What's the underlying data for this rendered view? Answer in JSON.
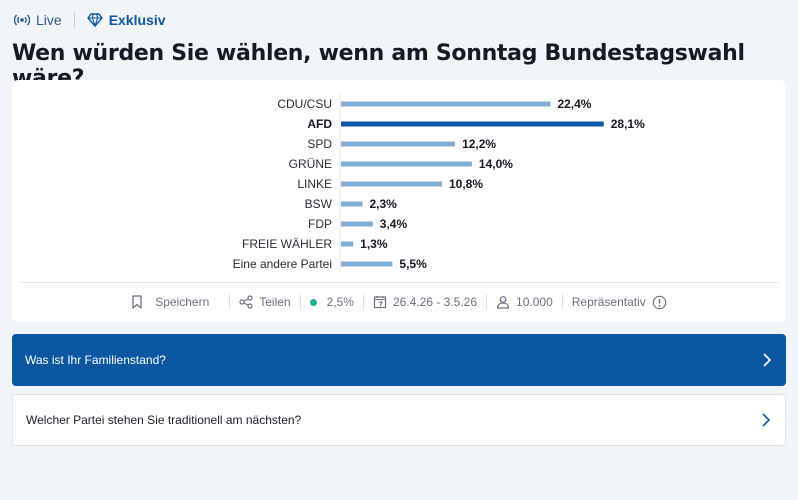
{
  "topbar": {
    "live_label": "Live",
    "exklusiv_label": "Exklusiv"
  },
  "headline": "Wen würden Sie wählen, wenn am Sonntag Bundestagswahl wäre?",
  "chart_data": {
    "type": "bar",
    "orientation": "horizontal",
    "categories": [
      "CDU/CSU",
      "AFD",
      "SPD",
      "GRÜNE",
      "LINKE",
      "BSW",
      "FDP",
      "FREIE WÄHLER",
      "Eine andere Partei"
    ],
    "values": [
      22.4,
      28.1,
      12.2,
      14.0,
      10.8,
      2.3,
      3.4,
      1.3,
      5.5
    ],
    "value_labels": [
      "22,4%",
      "28,1%",
      "12,2%",
      "14,0%",
      "10,8%",
      "2,3%",
      "3,4%",
      "1,3%",
      "5,5%"
    ],
    "highlight_index": 1,
    "colors": {
      "default": "#7faed4",
      "highlight": "#0b57a1"
    }
  },
  "footer": {
    "save_label": "Speichern",
    "share_label": "Teilen",
    "margin_label": "2,5%",
    "date_range": "26.4.26 - 3.5.26",
    "participants": "10.000",
    "representative_label": "Repräsentativ"
  },
  "questions": [
    {
      "label": "Was ist Ihr Familienstand?"
    },
    {
      "label": "Welcher Partei stehen Sie traditionell am nächsten?"
    }
  ]
}
